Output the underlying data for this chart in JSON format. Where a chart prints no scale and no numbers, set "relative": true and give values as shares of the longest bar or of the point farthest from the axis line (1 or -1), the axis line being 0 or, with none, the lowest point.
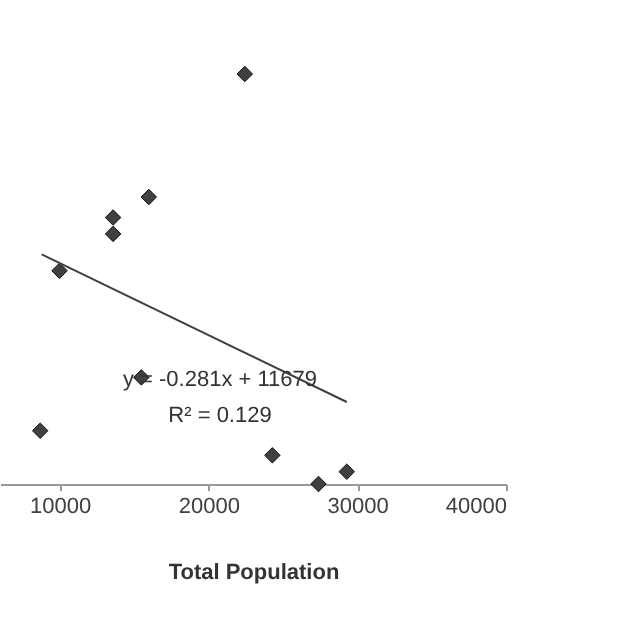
{
  "chart_data": {
    "type": "scatter",
    "relative": true,
    "xlabel": "Total Population",
    "xlim": [
      6000,
      40000
    ],
    "xticks": [
      10000,
      20000,
      30000,
      40000
    ],
    "grid": false,
    "annotations": [
      "y = -0.281x + 11679",
      "R² = 0.129"
    ],
    "series": [
      {
        "marker": "diamond",
        "color": "#404040",
        "x": [
          22450,
          16000,
          13600,
          13600,
          10000,
          15500,
          8700,
          24300,
          27400,
          29300
        ],
        "values": [
          1,
          0.7,
          0.65,
          0.61,
          0.52,
          0.26,
          0.13,
          0.07,
          0,
          0.03
        ]
      },
      {
        "type": "line",
        "color": "#404040",
        "x": [
          8800,
          29300
        ],
        "values": [
          0.56,
          0.2
        ]
      }
    ]
  }
}
